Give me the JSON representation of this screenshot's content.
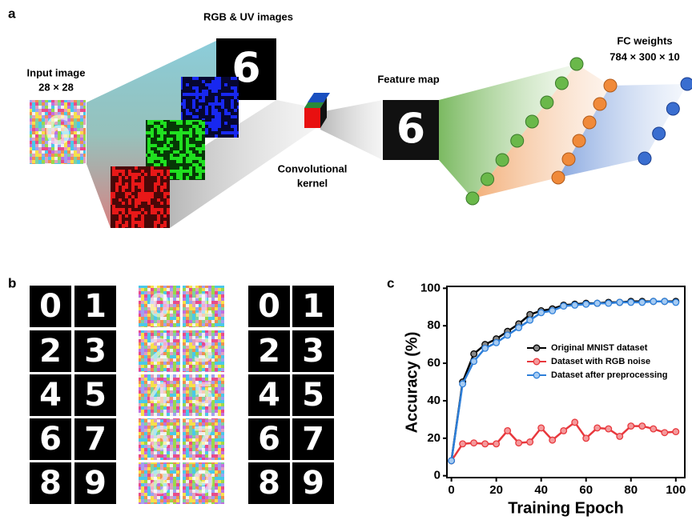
{
  "panel_a": {
    "label": "a",
    "input_image": "Input image",
    "input_size": "28 × 28",
    "rgb_uv": "RGB & UV images",
    "kernel": [
      "Convolutional",
      "kernel"
    ],
    "feature_map": "Feature map",
    "fc_weights": "FC weights",
    "fc_size": "784 × 300 × 10",
    "digit": "6"
  },
  "panel_b": {
    "label": "b",
    "digits": [
      "0",
      "1",
      "2",
      "3",
      "4",
      "5",
      "6",
      "7",
      "8",
      "9"
    ]
  },
  "chart_data": {
    "type": "line",
    "panel_label": "c",
    "xlabel": "Training Epoch",
    "ylabel": "Accuracy (%)",
    "x": [
      0,
      5,
      10,
      15,
      20,
      25,
      30,
      35,
      40,
      45,
      50,
      55,
      60,
      65,
      70,
      75,
      80,
      85,
      90,
      95,
      100
    ],
    "series": [
      {
        "name": "Original MNIST dataset",
        "color": "#000000",
        "values": [
          8,
          50,
          65,
          70,
          73,
          77,
          81,
          86,
          88,
          89,
          91,
          91.5,
          92,
          92,
          92.5,
          92.5,
          93,
          93,
          93,
          93,
          93
        ]
      },
      {
        "name": "Dataset with RGB noise",
        "color": "#e8383d",
        "values": [
          8,
          17,
          17.5,
          17,
          17,
          24,
          17.5,
          18,
          25.5,
          19,
          24,
          28.5,
          20,
          25.5,
          25,
          21,
          26.5,
          26.5,
          25,
          23,
          23.5
        ]
      },
      {
        "name": "Dataset after preprocessing",
        "color": "#2e7fd9",
        "values": [
          8,
          49,
          61,
          68,
          71,
          75,
          79,
          83,
          87,
          88,
          90.5,
          91,
          91.5,
          92,
          92,
          92.5,
          92.5,
          92.5,
          93,
          93,
          92.5
        ]
      }
    ],
    "xlim": [
      -2,
      104
    ],
    "ylim": [
      -1,
      101
    ],
    "xticks": [
      0,
      20,
      40,
      60,
      80,
      100
    ],
    "yticks": [
      0,
      20,
      40,
      60,
      80,
      100
    ],
    "legend": "center right"
  }
}
